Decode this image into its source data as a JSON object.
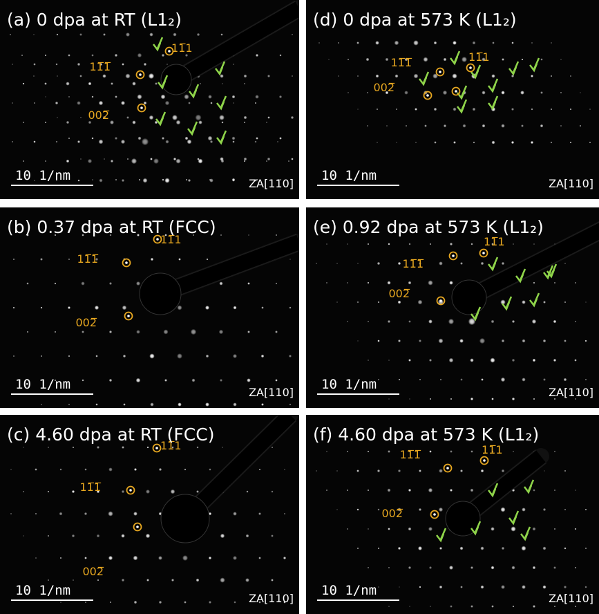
{
  "panels": [
    {
      "title": "(a) 0 dpa at RT (L1₂)",
      "spot_labels": [
        "11̅1",
        "11̅1̅",
        "002̅"
      ],
      "scale_bar": "10 1/nm",
      "zone_axis": "ZA[110]"
    },
    {
      "title": "(b) 0.37 dpa at RT (FCC)",
      "spot_labels": [
        "11̅1",
        "11̅1̅",
        "002̅"
      ],
      "scale_bar": "10 1/nm",
      "zone_axis": "ZA[110]"
    },
    {
      "title": "(c) 4.60 dpa at RT (FCC)",
      "spot_labels": [
        "11̅1",
        "11̅1̅",
        "002̅"
      ],
      "scale_bar": "10 1/nm",
      "zone_axis": "ZA[110]"
    },
    {
      "title": "(d) 0 dpa at 573 K (L1₂)",
      "spot_labels": [
        "11̅1",
        "11̅1̅",
        "002̅"
      ],
      "scale_bar": "10 1/nm",
      "zone_axis": "ZA[110]"
    },
    {
      "title": "(e) 0.92 dpa at 573 K (L1₂)",
      "spot_labels": [
        "11̅1",
        "11̅1̅",
        "002̅"
      ],
      "scale_bar": "10 1/nm",
      "zone_axis": "ZA[110]"
    },
    {
      "title": "(f) 4.60 dpa at 573 K (L1₂)",
      "spot_labels": [
        "11̅1",
        "11̅1̅",
        "002̅"
      ],
      "scale_bar": "10 1/nm",
      "zone_axis": "ZA[110]"
    }
  ]
}
